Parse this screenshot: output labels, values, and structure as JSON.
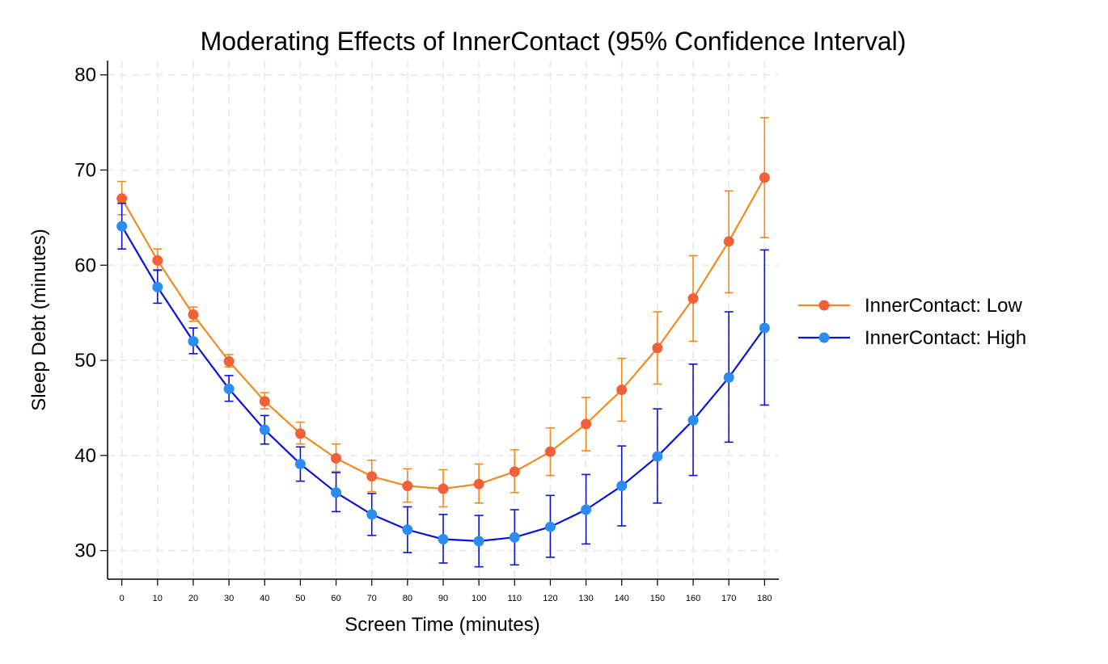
{
  "chart_data": {
    "type": "line",
    "title": "Moderating Effects of InnerContact (95% Confidence Interval)",
    "xlabel": "Screen Time (minutes)",
    "ylabel": "Sleep Debt (minutes)",
    "x": [
      0,
      10,
      20,
      30,
      40,
      50,
      60,
      70,
      80,
      90,
      100,
      110,
      120,
      130,
      140,
      150,
      160,
      170,
      180
    ],
    "x_tick_labels": [
      "0",
      "10",
      "20",
      "30",
      "40",
      "50",
      "60",
      "70",
      "80",
      "90",
      "100",
      "110",
      "120",
      "130",
      "140",
      "150",
      "160",
      "170",
      "180"
    ],
    "y_ticks": [
      30,
      40,
      50,
      60,
      70,
      80
    ],
    "y_tick_labels": [
      "30",
      "40",
      "50",
      "60",
      "70",
      "80"
    ],
    "xlim": [
      -4,
      184
    ],
    "ylim": [
      27,
      81.5
    ],
    "grid": true,
    "legend_position": "right",
    "series": [
      {
        "name": "InnerContact: Low",
        "line_color": "#F28A1E",
        "marker_color": "#F2603A",
        "values": [
          67.0,
          60.5,
          54.8,
          49.9,
          45.7,
          42.3,
          39.7,
          37.8,
          36.8,
          36.5,
          37.0,
          38.3,
          40.4,
          43.3,
          46.9,
          51.3,
          56.5,
          62.5,
          69.2
        ],
        "ci_lower": [
          65.3,
          59.4,
          54.1,
          49.3,
          44.9,
          41.2,
          38.3,
          36.2,
          35.1,
          34.6,
          35.0,
          36.1,
          37.9,
          40.5,
          43.6,
          47.5,
          52.0,
          57.1,
          62.9
        ],
        "ci_upper": [
          68.8,
          61.7,
          55.6,
          50.6,
          46.6,
          43.5,
          41.2,
          39.5,
          38.6,
          38.5,
          39.1,
          40.6,
          42.9,
          46.1,
          50.2,
          55.1,
          61.0,
          67.8,
          75.5
        ]
      },
      {
        "name": "InnerContact: High",
        "line_color": "#0A12D9",
        "marker_color": "#2B8CF2",
        "values": [
          64.1,
          57.7,
          52.0,
          47.0,
          42.7,
          39.1,
          36.1,
          33.8,
          32.2,
          31.2,
          31.0,
          31.4,
          32.5,
          34.3,
          36.8,
          39.9,
          43.7,
          48.2,
          53.4
        ],
        "ci_lower": [
          61.7,
          56.0,
          50.7,
          45.7,
          41.2,
          37.3,
          34.1,
          31.6,
          29.8,
          28.7,
          28.3,
          28.5,
          29.3,
          30.7,
          32.6,
          35.0,
          37.9,
          41.4,
          45.3
        ],
        "ci_upper": [
          66.5,
          59.5,
          53.4,
          48.4,
          44.2,
          40.9,
          38.2,
          36.0,
          34.6,
          33.8,
          33.7,
          34.3,
          35.8,
          38.0,
          41.0,
          44.9,
          49.6,
          55.1,
          61.6
        ]
      }
    ]
  }
}
